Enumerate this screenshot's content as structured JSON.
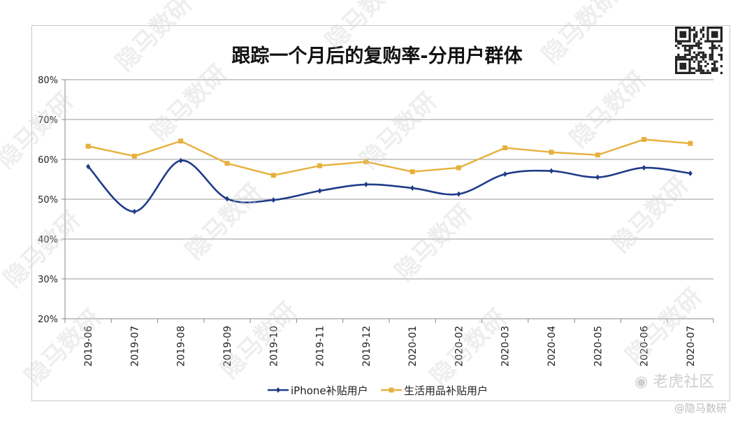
{
  "chart_data": {
    "type": "line",
    "title": "跟踪一个月后的复购率-分用户群体",
    "xlabel": "",
    "ylabel": "",
    "categories": [
      "2019-06",
      "2019-07",
      "2019-08",
      "2019-09",
      "2019-10",
      "2019-11",
      "2019-12",
      "2020-01",
      "2020-02",
      "2020-03",
      "2020-04",
      "2020-05",
      "2020-06",
      "2020-07"
    ],
    "ylim": [
      20,
      80
    ],
    "yticks": [
      "20%",
      "30%",
      "40%",
      "50%",
      "60%",
      "70%",
      "80%"
    ],
    "grid": true,
    "legend_position": "bottom",
    "series": [
      {
        "name": "iPhone补贴用户",
        "color": "#1f3c88",
        "marker": "diamond",
        "smooth": true,
        "values": [
          58.2,
          46.9,
          59.7,
          50.1,
          49.8,
          52.1,
          53.7,
          52.8,
          51.3,
          56.3,
          57.1,
          55.5,
          57.9,
          56.5
        ]
      },
      {
        "name": "生活用品补贴用户",
        "color": "#e6b03c",
        "marker": "square",
        "smooth": false,
        "values": [
          63.3,
          60.8,
          64.6,
          59.0,
          56.0,
          58.4,
          59.4,
          56.9,
          57.9,
          62.9,
          61.8,
          61.1,
          65.0,
          64.0
        ]
      }
    ]
  },
  "watermarks": {
    "main": "隐马数研",
    "corner_logo": "老虎社区",
    "corner_brand": "@隐马数研"
  },
  "icons": {
    "qr": "qr-code-icon",
    "tiger": "tiger-logo-icon"
  }
}
